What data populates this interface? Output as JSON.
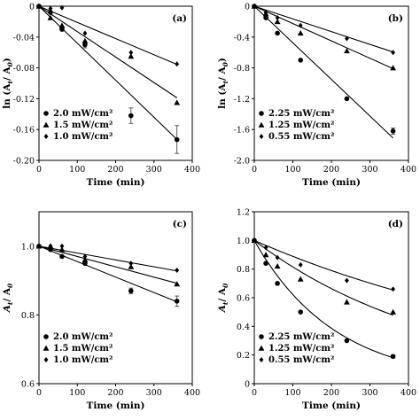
{
  "chart_data": [
    {
      "type": "scatter",
      "panel_label": "(a)",
      "xlabel": "Time (min)",
      "ylabel_main": "ln (A",
      "ylabel_sub1": "t",
      "ylabel_mid": "/ A",
      "ylabel_sub2": "0",
      "ylabel_end": ")",
      "xlim": [
        0,
        400
      ],
      "ylim": [
        -0.2,
        0
      ],
      "xticks": [
        0,
        100,
        200,
        300,
        400
      ],
      "yticks": [
        0,
        -0.04,
        -0.08,
        -0.12,
        -0.16,
        -0.2
      ],
      "xtick_labels": [
        "0",
        "100",
        "200",
        "300",
        "400"
      ],
      "ytick_labels": [
        "0",
        "-0.04",
        "-0.08",
        "-0.12",
        "-0.16",
        "-0.20"
      ],
      "legend_position": "bottom-left",
      "fit": "linear",
      "series": [
        {
          "name": "2.0 mW/cm²",
          "marker": "circle",
          "x": [
            0,
            30,
            60,
            120,
            240,
            360
          ],
          "y": [
            0,
            -0.008,
            -0.03,
            -0.05,
            -0.142,
            -0.173
          ],
          "err": [
            0,
            0,
            0,
            0.004,
            0.01,
            0.018
          ],
          "slope": -0.00048
        },
        {
          "name": "1.5 mW/cm²",
          "marker": "triangle",
          "x": [
            0,
            30,
            60,
            120,
            240,
            360
          ],
          "y": [
            0,
            -0.015,
            -0.025,
            -0.045,
            -0.065,
            -0.125
          ],
          "err": [
            0,
            0,
            0,
            0,
            0,
            0
          ],
          "slope": -0.00033
        },
        {
          "name": "1.0 mW/cm²",
          "marker": "diamond",
          "x": [
            0,
            30,
            60,
            120,
            240,
            360
          ],
          "y": [
            0,
            -0.003,
            -0.002,
            -0.035,
            -0.06,
            -0.075
          ],
          "err": [
            0,
            0,
            0,
            0,
            0,
            0
          ],
          "slope": -0.00021
        }
      ]
    },
    {
      "type": "scatter",
      "panel_label": "(b)",
      "xlabel": "Time (min)",
      "ylabel_main": "ln (A",
      "ylabel_sub1": "t",
      "ylabel_mid": "/ A",
      "ylabel_sub2": "0",
      "ylabel_end": ")",
      "xlim": [
        0,
        400
      ],
      "ylim": [
        -2.0,
        0
      ],
      "xticks": [
        0,
        100,
        200,
        300,
        400
      ],
      "yticks": [
        0,
        -0.4,
        -0.8,
        -1.2,
        -1.6,
        -2.0
      ],
      "xtick_labels": [
        "0",
        "100",
        "200",
        "300",
        "400"
      ],
      "ytick_labels": [
        "0",
        "-0.4",
        "-0.8",
        "-1.2",
        "-1.6",
        "-2.0"
      ],
      "legend_position": "bottom-left",
      "fit": "linear",
      "series": [
        {
          "name": "2.25 mW/cm²",
          "marker": "circle",
          "x": [
            0,
            30,
            60,
            120,
            240,
            360
          ],
          "y": [
            0,
            -0.15,
            -0.35,
            -0.7,
            -1.2,
            -1.62
          ],
          "err": [
            0,
            0,
            0,
            0,
            0,
            0.04
          ],
          "slope": -0.00475
        },
        {
          "name": "1.25 mW/cm²",
          "marker": "triangle",
          "x": [
            0,
            30,
            60,
            120,
            240,
            360
          ],
          "y": [
            0,
            -0.1,
            -0.2,
            -0.35,
            -0.58,
            -0.8
          ],
          "err": [
            0,
            0,
            0,
            0,
            0,
            0
          ],
          "slope": -0.00225
        },
        {
          "name": "0.55 mW/cm²",
          "marker": "diamond",
          "x": [
            0,
            30,
            60,
            120,
            240,
            360
          ],
          "y": [
            0,
            -0.08,
            -0.15,
            -0.25,
            -0.42,
            -0.6
          ],
          "err": [
            0,
            0,
            0,
            0,
            0,
            0
          ],
          "slope": -0.00165
        }
      ]
    },
    {
      "type": "scatter",
      "panel_label": "(c)",
      "xlabel": "Time (min)",
      "ylabel_main": "A",
      "ylabel_sub1": "t",
      "ylabel_mid": "/ A",
      "ylabel_sub2": "0",
      "ylabel_end": "",
      "xlim": [
        0,
        400
      ],
      "ylim": [
        0.6,
        1.1
      ],
      "xticks": [
        0,
        100,
        200,
        300,
        400
      ],
      "yticks": [
        0.6,
        0.8,
        1.0
      ],
      "xtick_labels": [
        "0",
        "100",
        "200",
        "300",
        "400"
      ],
      "ytick_labels": [
        "0.6",
        "0.8",
        "1.0"
      ],
      "legend_position": "bottom-left",
      "fit": "linear",
      "series": [
        {
          "name": "2.0 mW/cm²",
          "marker": "circle",
          "x": [
            0,
            30,
            60,
            120,
            240,
            360
          ],
          "y": [
            1.0,
            0.99,
            0.97,
            0.95,
            0.87,
            0.84
          ],
          "err": [
            0,
            0,
            0,
            0,
            0.008,
            0.015
          ],
          "fit_start": 1.0,
          "slope": -0.00045
        },
        {
          "name": "1.5 mW/cm²",
          "marker": "triangle",
          "x": [
            0,
            30,
            60,
            120,
            240,
            360
          ],
          "y": [
            1.0,
            1.0,
            0.99,
            0.96,
            0.94,
            0.89
          ],
          "err": [
            0,
            0,
            0,
            0,
            0,
            0
          ],
          "fit_start": 1.0,
          "slope": -0.0003
        },
        {
          "name": "1.0 mW/cm²",
          "marker": "diamond",
          "x": [
            0,
            30,
            60,
            120,
            240,
            360
          ],
          "y": [
            1.0,
            1.0,
            1.0,
            0.97,
            0.95,
            0.93
          ],
          "err": [
            0,
            0,
            0,
            0,
            0,
            0
          ],
          "fit_start": 1.0,
          "slope": -0.0002
        }
      ]
    },
    {
      "type": "scatter",
      "panel_label": "(d)",
      "xlabel": "Time (min)",
      "ylabel_main": "A",
      "ylabel_sub1": "t",
      "ylabel_mid": "/ A",
      "ylabel_sub2": "0",
      "ylabel_end": "",
      "xlim": [
        0,
        400
      ],
      "ylim": [
        0,
        1.2
      ],
      "xticks": [
        0,
        100,
        200,
        300,
        400
      ],
      "yticks": [
        0,
        0.2,
        0.4,
        0.6,
        0.8,
        1.0,
        1.2
      ],
      "xtick_labels": [
        "0",
        "100",
        "200",
        "300",
        "400"
      ],
      "ytick_labels": [
        "0",
        "0.2",
        "0.4",
        "0.6",
        "0.8",
        "1.0",
        "1.2"
      ],
      "legend_position": "bottom-left",
      "fit": "exponential",
      "series": [
        {
          "name": "2.25 mW/cm²",
          "marker": "circle",
          "x": [
            0,
            30,
            60,
            120,
            240,
            360
          ],
          "y": [
            1.0,
            0.84,
            0.7,
            0.5,
            0.3,
            0.19
          ],
          "err": [
            0,
            0,
            0,
            0,
            0,
            0.01
          ],
          "rate": 0.00475
        },
        {
          "name": "1.25 mW/cm²",
          "marker": "triangle",
          "x": [
            0,
            30,
            60,
            120,
            240,
            360
          ],
          "y": [
            1.0,
            0.9,
            0.82,
            0.73,
            0.57,
            0.5
          ],
          "err": [
            0,
            0,
            0,
            0,
            0,
            0
          ],
          "rate": 0.00205
        },
        {
          "name": "0.55 mW/cm²",
          "marker": "diamond",
          "x": [
            0,
            30,
            60,
            120,
            240,
            360
          ],
          "y": [
            1.0,
            0.95,
            0.88,
            0.83,
            0.72,
            0.66
          ],
          "err": [
            0,
            0,
            0,
            0,
            0,
            0
          ],
          "rate": 0.00118
        }
      ]
    }
  ]
}
